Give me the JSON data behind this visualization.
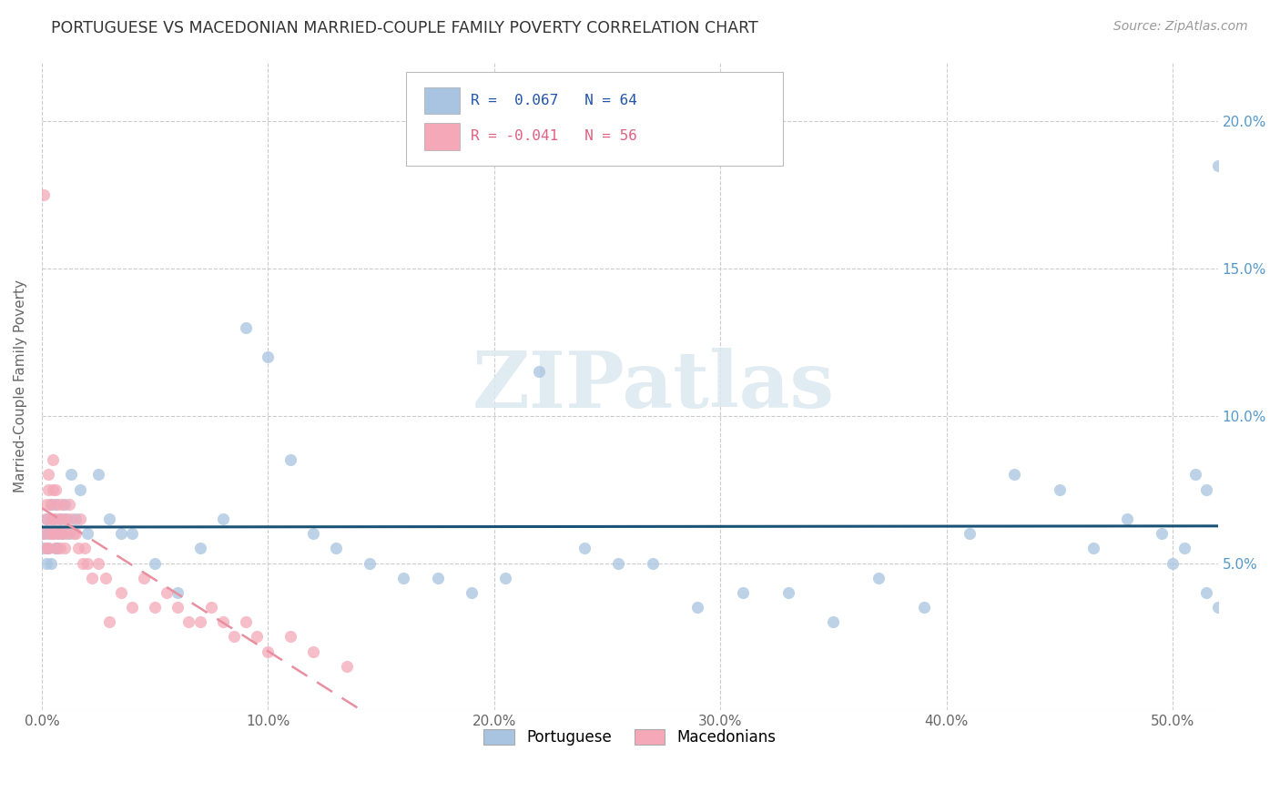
{
  "title": "PORTUGUESE VS MACEDONIAN MARRIED-COUPLE FAMILY POVERTY CORRELATION CHART",
  "source": "Source: ZipAtlas.com",
  "ylabel": "Married-Couple Family Poverty",
  "xlim": [
    0.0,
    0.52
  ],
  "ylim": [
    0.0,
    0.22
  ],
  "portuguese_color": "#a8c4e0",
  "portuguese_edge_color": "#a8c4e0",
  "macedonian_color": "#f4a8b8",
  "macedonian_edge_color": "#f4a8b8",
  "portuguese_line_color": "#1a5276",
  "macedonian_line_color": "#e88fa0",
  "portuguese_R": 0.067,
  "portuguese_N": 64,
  "macedonian_R": -0.041,
  "macedonian_N": 56,
  "watermark_text": "ZIPatlas",
  "portuguese_x": [
    0.001,
    0.001,
    0.002,
    0.002,
    0.003,
    0.003,
    0.004,
    0.004,
    0.005,
    0.005,
    0.006,
    0.006,
    0.007,
    0.007,
    0.008,
    0.009,
    0.01,
    0.011,
    0.012,
    0.013,
    0.015,
    0.017,
    0.02,
    0.025,
    0.03,
    0.035,
    0.04,
    0.05,
    0.06,
    0.07,
    0.08,
    0.09,
    0.1,
    0.11,
    0.12,
    0.13,
    0.145,
    0.16,
    0.175,
    0.19,
    0.205,
    0.22,
    0.24,
    0.255,
    0.27,
    0.29,
    0.31,
    0.33,
    0.35,
    0.37,
    0.39,
    0.41,
    0.43,
    0.45,
    0.465,
    0.48,
    0.495,
    0.5,
    0.505,
    0.51,
    0.515,
    0.515,
    0.52,
    0.52
  ],
  "portuguese_y": [
    0.055,
    0.06,
    0.05,
    0.065,
    0.06,
    0.055,
    0.07,
    0.05,
    0.065,
    0.06,
    0.055,
    0.07,
    0.06,
    0.055,
    0.065,
    0.06,
    0.07,
    0.065,
    0.06,
    0.08,
    0.065,
    0.075,
    0.06,
    0.08,
    0.065,
    0.06,
    0.06,
    0.05,
    0.04,
    0.055,
    0.065,
    0.13,
    0.12,
    0.085,
    0.06,
    0.055,
    0.05,
    0.045,
    0.045,
    0.04,
    0.045,
    0.115,
    0.055,
    0.05,
    0.05,
    0.035,
    0.04,
    0.04,
    0.03,
    0.045,
    0.035,
    0.06,
    0.08,
    0.075,
    0.055,
    0.065,
    0.06,
    0.05,
    0.055,
    0.08,
    0.075,
    0.04,
    0.035,
    0.185
  ],
  "macedonian_x": [
    0.001,
    0.001,
    0.002,
    0.002,
    0.002,
    0.003,
    0.003,
    0.003,
    0.004,
    0.004,
    0.004,
    0.005,
    0.005,
    0.005,
    0.006,
    0.006,
    0.006,
    0.007,
    0.007,
    0.008,
    0.008,
    0.009,
    0.009,
    0.01,
    0.01,
    0.011,
    0.012,
    0.013,
    0.014,
    0.015,
    0.016,
    0.017,
    0.018,
    0.019,
    0.02,
    0.022,
    0.025,
    0.028,
    0.03,
    0.035,
    0.04,
    0.045,
    0.05,
    0.055,
    0.06,
    0.065,
    0.07,
    0.075,
    0.08,
    0.085,
    0.09,
    0.095,
    0.1,
    0.11,
    0.12,
    0.135
  ],
  "macedonian_y": [
    0.175,
    0.06,
    0.055,
    0.07,
    0.065,
    0.08,
    0.055,
    0.075,
    0.065,
    0.07,
    0.06,
    0.085,
    0.075,
    0.06,
    0.075,
    0.065,
    0.055,
    0.07,
    0.06,
    0.065,
    0.055,
    0.07,
    0.06,
    0.065,
    0.055,
    0.06,
    0.07,
    0.065,
    0.06,
    0.06,
    0.055,
    0.065,
    0.05,
    0.055,
    0.05,
    0.045,
    0.05,
    0.045,
    0.03,
    0.04,
    0.035,
    0.045,
    0.035,
    0.04,
    0.035,
    0.03,
    0.03,
    0.035,
    0.03,
    0.025,
    0.03,
    0.025,
    0.02,
    0.025,
    0.02,
    0.015
  ]
}
